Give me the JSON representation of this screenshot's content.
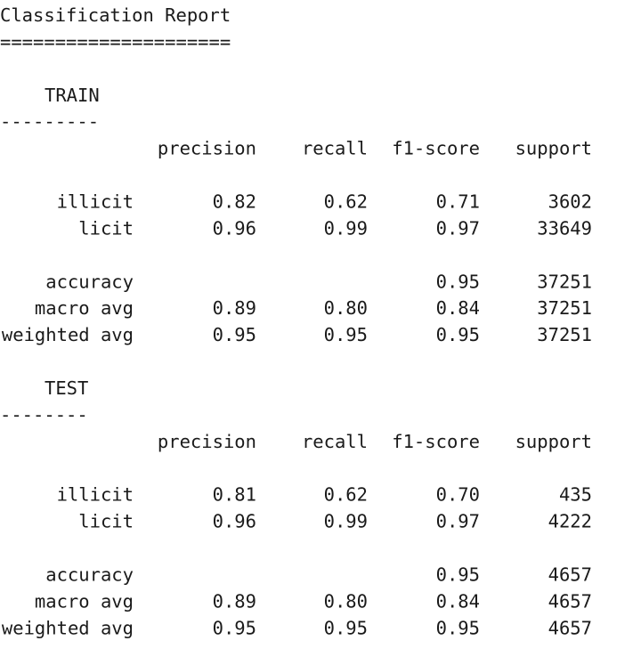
{
  "title": "Classification Report",
  "title_rule": "=====================",
  "sections": [
    {
      "name": "TRAIN",
      "rule": "---------",
      "columns": [
        "precision",
        "recall",
        "f1-score",
        "support"
      ],
      "class_rows": [
        {
          "label": "illicit",
          "values": [
            "0.82",
            "0.62",
            "0.71",
            3602
          ]
        },
        {
          "label": "licit",
          "values": [
            "0.96",
            "0.99",
            "0.97",
            33649
          ]
        }
      ],
      "summary_rows": [
        {
          "label": "accuracy",
          "values": [
            "0.95",
            37251
          ]
        },
        {
          "label": "macro avg",
          "values": [
            "0.89",
            "0.80",
            "0.84",
            37251
          ]
        },
        {
          "label": "weighted avg",
          "values": [
            "0.95",
            "0.95",
            "0.95",
            37251
          ]
        }
      ]
    },
    {
      "name": "TEST",
      "rule": "--------",
      "columns": [
        "precision",
        "recall",
        "f1-score",
        "support"
      ],
      "class_rows": [
        {
          "label": "illicit",
          "values": [
            "0.81",
            "0.62",
            "0.70",
            435
          ]
        },
        {
          "label": "licit",
          "values": [
            "0.96",
            "0.99",
            "0.97",
            4222
          ]
        }
      ],
      "summary_rows": [
        {
          "label": "accuracy",
          "values": [
            "0.95",
            4657
          ]
        },
        {
          "label": "macro avg",
          "values": [
            "0.89",
            "0.80",
            "0.84",
            4657
          ]
        },
        {
          "label": "weighted avg",
          "values": [
            "0.95",
            "0.95",
            "0.95",
            4657
          ]
        }
      ]
    }
  ]
}
